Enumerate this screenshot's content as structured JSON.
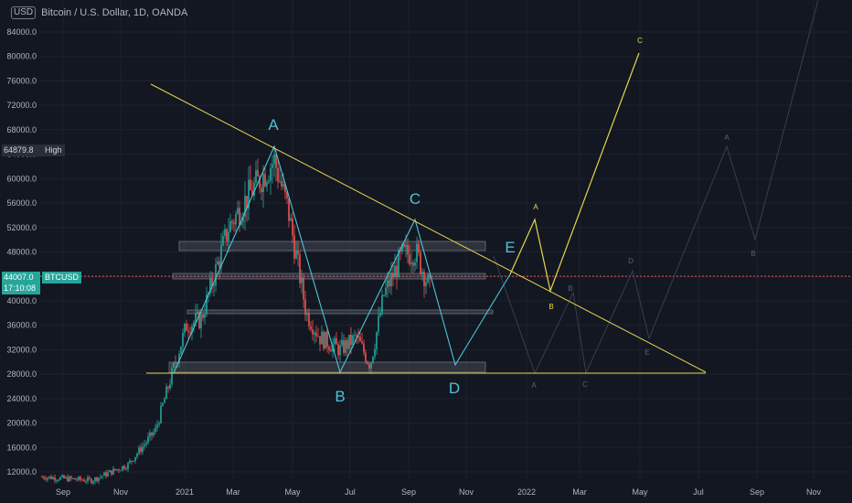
{
  "header": {
    "currency_button": "USD",
    "title": "Bitcoin / U.S. Dollar, 1D, OANDA"
  },
  "tags": {
    "high_value": "64879.8",
    "high_label": "High",
    "last_price": "44007.0",
    "countdown": "17:10:08",
    "symbol": "BTCUSD"
  },
  "chart_data": {
    "type": "candlestick",
    "title": "Bitcoin / U.S. Dollar, 1D, OANDA",
    "y_ticks": [
      "84000.0",
      "80000.0",
      "76000.0",
      "72000.0",
      "68000.0",
      "64000.0",
      "60000.0",
      "56000.0",
      "52000.0",
      "48000.0",
      "44000.0",
      "40000.0",
      "36000.0",
      "32000.0",
      "28000.0",
      "24000.0",
      "20000.0",
      "16000.0",
      "12000.0"
    ],
    "x_ticks": [
      "Sep",
      "Nov",
      "2021",
      "Mar",
      "May",
      "Jul",
      "Sep",
      "Nov",
      "2022",
      "Mar",
      "May",
      "Jul",
      "Sep",
      "Nov"
    ],
    "ylim": [
      10000,
      88000
    ],
    "last_price": 44007.0,
    "high": 64879.8,
    "pattern_labels": {
      "main": [
        "A",
        "B",
        "C",
        "D",
        "E"
      ],
      "projection": [
        "A",
        "B",
        "C"
      ],
      "ghost": [
        "A",
        "B",
        "C",
        "D",
        "E",
        "A",
        "B"
      ]
    },
    "colors": {
      "up": "#26a69a",
      "down": "#ef5350",
      "trend": "#e8d44d",
      "wave": "#4fc3d7",
      "ghost": "#3a3e49"
    }
  }
}
